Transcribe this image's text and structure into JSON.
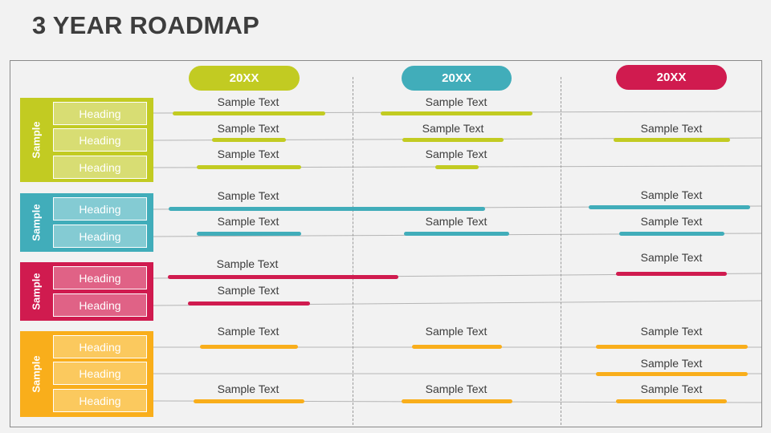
{
  "title": "3 YEAR ROADMAP",
  "years": [
    "20XX",
    "20XX",
    "20XX"
  ],
  "colors": {
    "green": "#c2cb22",
    "teal": "#41adba",
    "red": "#d01b4f",
    "orange": "#f9ae1b"
  },
  "groups": [
    {
      "label": "Sample",
      "headings": [
        "Heading",
        "Heading",
        "Heading"
      ]
    },
    {
      "label": "Sample",
      "headings": [
        "Heading",
        "Heading"
      ]
    },
    {
      "label": "Sample",
      "headings": [
        "Heading",
        "Heading"
      ]
    },
    {
      "label": "Sample",
      "headings": [
        "Heading",
        "Heading",
        "Heading"
      ]
    }
  ],
  "sample_text": "Sample Text"
}
